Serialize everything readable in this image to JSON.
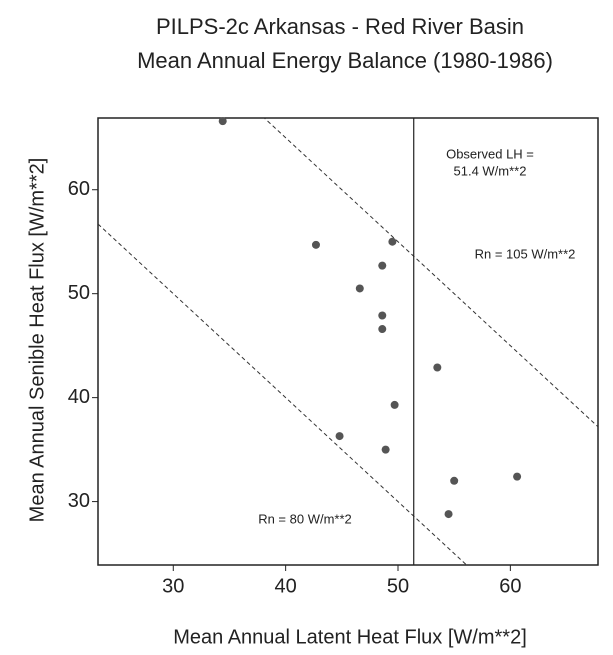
{
  "chart_data": {
    "type": "scatter",
    "title": [
      "PILPS-2c Arkansas - Red River Basin",
      "Mean Annual Energy Balance (1980-1986)"
    ],
    "x_label": "Mean Annual Latent Heat Flux [W/m**2]",
    "y_label": "Mean Annual Senible Heat Flux [W/m**2]",
    "x": [
      34.4,
      42.7,
      49.5,
      48.6,
      46.6,
      48.6,
      48.6,
      53.5,
      49.7,
      44.8,
      48.9,
      60.6,
      55.0,
      54.5
    ],
    "values": [
      66.6,
      54.7,
      55.0,
      52.7,
      50.5,
      47.9,
      46.6,
      42.9,
      39.3,
      36.3,
      35.0,
      32.4,
      32.0,
      28.8
    ],
    "color": "#555555",
    "xlim": [
      23.3,
      67.8
    ],
    "ylim": [
      23.9,
      66.9
    ],
    "xticks": [
      30,
      40,
      50,
      60
    ],
    "yticks": [
      30,
      40,
      50,
      60
    ],
    "reference_lines": [
      {
        "rn": 105,
        "label": "Rn = 105 W/m**2"
      },
      {
        "rn": 80,
        "label": "Rn = 80 W/m**2"
      }
    ],
    "observed_lh": {
      "value": 51.4,
      "label_lines": [
        "Observed LH =",
        "51.4 W/m**2"
      ]
    }
  }
}
